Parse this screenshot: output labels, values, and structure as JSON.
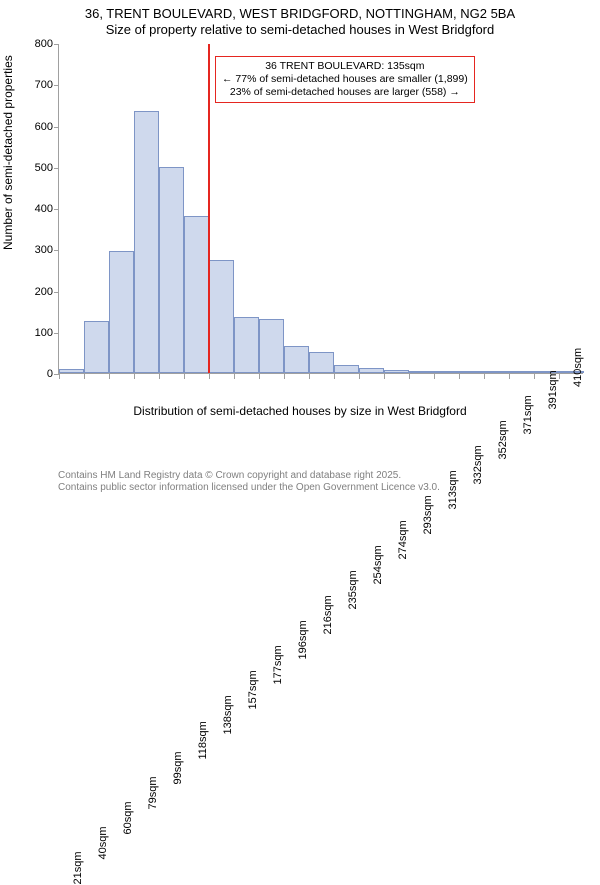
{
  "title_line1": "36, TRENT BOULEVARD, WEST BRIDGFORD, NOTTINGHAM, NG2 5BA",
  "title_line2": "Size of property relative to semi-detached houses in West Bridgford",
  "chart": {
    "type": "histogram",
    "ylabel": "Number of semi-detached properties",
    "xlabel": "Distribution of semi-detached houses by size in West Bridgford",
    "ylim": [
      0,
      800
    ],
    "ytick_step": 100,
    "xtick_labels": [
      "21sqm",
      "40sqm",
      "60sqm",
      "79sqm",
      "99sqm",
      "118sqm",
      "138sqm",
      "157sqm",
      "177sqm",
      "196sqm",
      "216sqm",
      "235sqm",
      "254sqm",
      "274sqm",
      "293sqm",
      "313sqm",
      "332sqm",
      "352sqm",
      "371sqm",
      "391sqm",
      "410sqm"
    ],
    "bar_values": [
      10,
      125,
      295,
      635,
      500,
      380,
      275,
      135,
      130,
      65,
      50,
      20,
      12,
      8,
      5,
      2,
      2,
      2,
      2,
      1,
      1
    ],
    "bar_fill_color": "#cfd9ed",
    "bar_stroke_color": "#7e95c6",
    "background_color": "#ffffff",
    "axis_color": "#a0a0a0",
    "label_fontsize": 12,
    "tick_fontsize": 11,
    "ref_line": {
      "color": "#e52620",
      "bin_index_after": 5
    },
    "annotation": {
      "border_color": "#e52620",
      "line1": "36 TRENT BOULEVARD: 135sqm",
      "line2": "← 77% of semi-detached houses are smaller (1,899)",
      "line3": "23% of semi-detached houses are larger (558) →"
    }
  },
  "footer_line1": "Contains HM Land Registry data © Crown copyright and database right 2025.",
  "footer_line2": "Contains public sector information licensed under the Open Government Licence v3.0."
}
